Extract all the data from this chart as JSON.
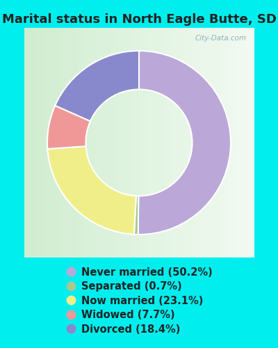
{
  "title": "Marital status in North Eagle Butte, SD",
  "slices": [
    50.2,
    0.7,
    23.1,
    7.7,
    18.4
  ],
  "labels": [
    "Never married (50.2%)",
    "Separated (0.7%)",
    "Now married (23.1%)",
    "Widowed (7.7%)",
    "Divorced (18.4%)"
  ],
  "colors": [
    "#BBA8D8",
    "#A8C890",
    "#F0EE88",
    "#F09898",
    "#8888CC"
  ],
  "bg_color": "#00EEEE",
  "chart_bg_tl": "#E8F5E0",
  "chart_bg_br": "#F8FFF8",
  "watermark": "City-Data.com",
  "title_fontsize": 13,
  "legend_fontsize": 10.5,
  "title_color": "#222222"
}
